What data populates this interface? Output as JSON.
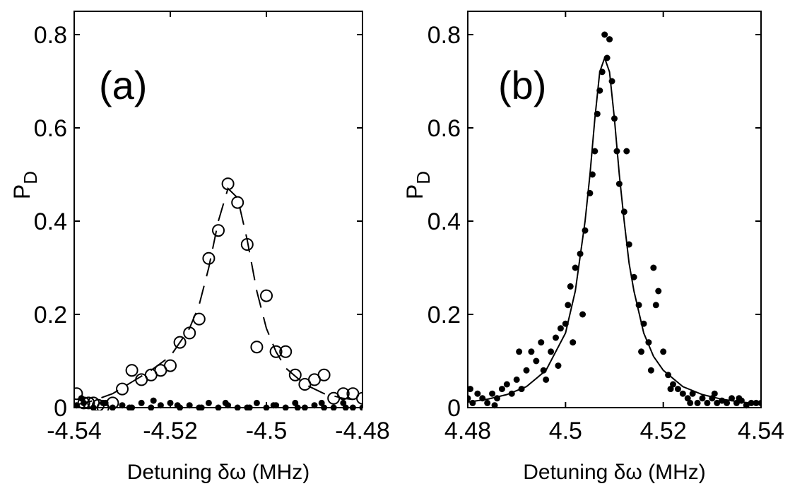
{
  "chart_data": [
    {
      "type": "scatter",
      "panel_label": "(a)",
      "xlabel": "Detuning δω (MHz)",
      "ylabel": {
        "main": "P",
        "sub": "D"
      },
      "xlim": [
        -4.54,
        -4.48
      ],
      "ylim": [
        0,
        0.85
      ],
      "xticks": [
        -4.54,
        -4.52,
        -4.5,
        -4.48
      ],
      "xtick_labels": [
        "-4.54",
        "-4.52",
        "-4.5",
        "-4.48"
      ],
      "yticks": [
        0,
        0.2,
        0.4,
        0.6,
        0.8
      ],
      "ytick_labels": [
        "0",
        "0.2",
        "0.4",
        "0.6",
        "0.8"
      ],
      "grid": false,
      "series": [
        {
          "marker": "open-circle",
          "x": [
            -4.5395,
            -4.538,
            -4.537,
            -4.536,
            -4.535,
            -4.534,
            -4.532,
            -4.53,
            -4.528,
            -4.526,
            -4.524,
            -4.522,
            -4.52,
            -4.518,
            -4.516,
            -4.514,
            -4.512,
            -4.51,
            -4.508,
            -4.506,
            -4.504,
            -4.502,
            -4.5,
            -4.498,
            -4.496,
            -4.494,
            -4.492,
            -4.49,
            -4.488,
            -4.486,
            -4.484,
            -4.482,
            -4.48
          ],
          "y": [
            0.03,
            0.01,
            0.01,
            0.01,
            0.005,
            0.0,
            0.01,
            0.04,
            0.08,
            0.06,
            0.07,
            0.08,
            0.09,
            0.14,
            0.16,
            0.19,
            0.32,
            0.38,
            0.48,
            0.44,
            0.35,
            0.13,
            0.24,
            0.12,
            0.12,
            0.07,
            0.05,
            0.06,
            0.07,
            0.02,
            0.03,
            0.03,
            0.02
          ]
        },
        {
          "marker": "filled-dot",
          "x": [
            -4.5395,
            -4.538,
            -4.536,
            -4.534,
            -4.532,
            -4.53,
            -4.528,
            -4.526,
            -4.524,
            -4.522,
            -4.52,
            -4.518,
            -4.516,
            -4.514,
            -4.512,
            -4.51,
            -4.508,
            -4.506,
            -4.504,
            -4.502,
            -4.5,
            -4.498,
            -4.496,
            -4.494,
            -4.492,
            -4.49,
            -4.488,
            -4.486,
            -4.484,
            -4.482,
            -4.48,
            -4.5385,
            -4.5335,
            -4.5285,
            -4.5235,
            -4.5185,
            -4.5135,
            -4.5085,
            -4.5035,
            -4.4985,
            -4.4935,
            -4.4885,
            -4.4835
          ],
          "y": [
            0.005,
            0.01,
            0.0,
            0.01,
            0.0,
            0.005,
            0.0,
            0.01,
            0.0,
            0.005,
            0.01,
            0.0,
            0.005,
            0.0,
            0.01,
            0.0,
            0.005,
            0.0,
            0.0,
            0.01,
            0.0,
            0.005,
            0.0,
            0.01,
            0.0,
            0.005,
            0.0,
            0.0,
            0.01,
            0.0,
            0.0,
            0.02,
            0.01,
            0.0,
            0.015,
            0.005,
            0.0,
            0.01,
            0.0,
            0.005,
            0.0,
            0.01,
            0.0
          ]
        },
        {
          "line": "dashed",
          "x": [
            -4.54,
            -4.536,
            -4.532,
            -4.528,
            -4.524,
            -4.52,
            -4.516,
            -4.514,
            -4.512,
            -4.51,
            -4.508,
            -4.506,
            -4.504,
            -4.502,
            -4.5,
            -4.498,
            -4.496,
            -4.492,
            -4.488,
            -4.484,
            -4.48
          ],
          "y": [
            0.005,
            0.015,
            0.03,
            0.055,
            0.08,
            0.11,
            0.17,
            0.22,
            0.3,
            0.4,
            0.47,
            0.45,
            0.36,
            0.25,
            0.17,
            0.12,
            0.085,
            0.05,
            0.03,
            0.02,
            0.015
          ]
        }
      ]
    },
    {
      "type": "scatter",
      "panel_label": "(b)",
      "xlabel": "Detuning δω (MHz)",
      "ylabel": {
        "main": "P",
        "sub": "D"
      },
      "xlim": [
        4.48,
        4.54
      ],
      "ylim": [
        0,
        0.85
      ],
      "xticks": [
        4.48,
        4.5,
        4.52,
        4.54
      ],
      "xtick_labels": [
        "4.48",
        "4.5",
        "4.52",
        "4.54"
      ],
      "yticks": [
        0,
        0.2,
        0.4,
        0.6,
        0.8
      ],
      "ytick_labels": [
        "0",
        "0.2",
        "0.4",
        "0.6",
        "0.8"
      ],
      "grid": false,
      "series": [
        {
          "marker": "filled-dot",
          "x": [
            4.48,
            4.481,
            4.482,
            4.483,
            4.484,
            4.485,
            4.486,
            4.487,
            4.488,
            4.489,
            4.49,
            4.491,
            4.492,
            4.493,
            4.494,
            4.495,
            4.496,
            4.497,
            4.498,
            4.499,
            4.5,
            4.5005,
            4.501,
            4.502,
            4.503,
            4.504,
            4.505,
            4.5055,
            4.506,
            4.5065,
            4.507,
            4.5075,
            4.508,
            4.5085,
            4.509,
            4.5095,
            4.51,
            4.5105,
            4.511,
            4.512,
            4.513,
            4.514,
            4.515,
            4.516,
            4.517,
            4.518,
            4.519,
            4.52,
            4.521,
            4.522,
            4.523,
            4.524,
            4.525,
            4.526,
            4.527,
            4.528,
            4.529,
            4.53,
            4.531,
            4.532,
            4.533,
            4.534,
            4.535,
            4.536,
            4.537,
            4.538,
            4.539,
            4.54,
            4.4805,
            4.4855,
            4.4905,
            4.4955,
            4.4985,
            4.5015,
            4.5035,
            4.5125,
            4.5155,
            4.5175,
            4.5185,
            4.5215,
            4.5255,
            4.5305,
            4.5355
          ],
          "y": [
            0.02,
            0.01,
            0.03,
            0.02,
            0.01,
            0.03,
            0.02,
            0.04,
            0.05,
            0.03,
            0.06,
            0.04,
            0.08,
            0.12,
            0.1,
            0.14,
            0.06,
            0.12,
            0.15,
            0.17,
            0.18,
            0.22,
            0.26,
            0.3,
            0.33,
            0.38,
            0.46,
            0.5,
            0.55,
            0.63,
            0.68,
            0.72,
            0.8,
            0.75,
            0.79,
            0.7,
            0.62,
            0.55,
            0.48,
            0.42,
            0.35,
            0.28,
            0.22,
            0.18,
            0.14,
            0.3,
            0.25,
            0.12,
            0.07,
            0.05,
            0.04,
            0.03,
            0.02,
            0.03,
            0.01,
            0.02,
            0.01,
            0.02,
            0.01,
            0.015,
            0.01,
            0.02,
            0.01,
            0.015,
            0.005,
            0.01,
            0.01,
            0.01,
            0.04,
            0.005,
            0.12,
            0.08,
            0.09,
            0.14,
            0.2,
            0.55,
            0.12,
            0.08,
            0.22,
            0.04,
            0.01,
            0.03,
            0.02
          ]
        },
        {
          "line": "solid",
          "x": [
            4.48,
            4.484,
            4.488,
            4.492,
            4.496,
            4.5,
            4.502,
            4.504,
            4.505,
            4.506,
            4.507,
            4.508,
            4.509,
            4.51,
            4.511,
            4.512,
            4.513,
            4.514,
            4.516,
            4.518,
            4.52,
            4.524,
            4.528,
            4.532,
            4.536,
            4.54
          ],
          "y": [
            0.012,
            0.018,
            0.028,
            0.045,
            0.08,
            0.16,
            0.25,
            0.4,
            0.5,
            0.62,
            0.72,
            0.75,
            0.72,
            0.62,
            0.5,
            0.4,
            0.31,
            0.25,
            0.16,
            0.11,
            0.08,
            0.045,
            0.028,
            0.018,
            0.012,
            0.008
          ]
        }
      ]
    }
  ]
}
